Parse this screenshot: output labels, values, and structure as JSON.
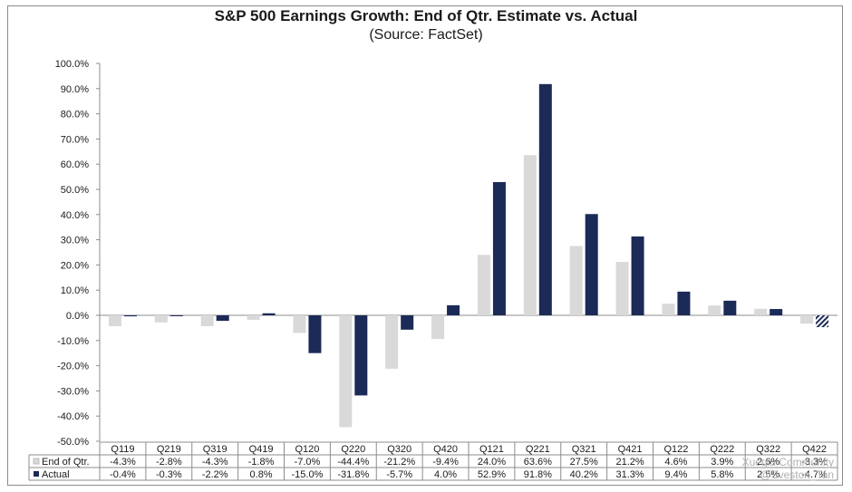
{
  "chart_data": {
    "type": "bar",
    "title": "S&P 500 Earnings Growth: End of Qtr. Estimate vs. Actual",
    "subtitle": "(Source: FactSet)",
    "categories": [
      "Q119",
      "Q219",
      "Q319",
      "Q419",
      "Q120",
      "Q220",
      "Q320",
      "Q420",
      "Q121",
      "Q221",
      "Q321",
      "Q421",
      "Q122",
      "Q222",
      "Q322",
      "Q422"
    ],
    "series": [
      {
        "name": "End of Qtr.",
        "color": "#d9d9d9",
        "values": [
          -4.3,
          -2.8,
          -4.3,
          -1.8,
          -7.0,
          -44.4,
          -21.2,
          -9.4,
          24.0,
          63.6,
          27.5,
          21.2,
          4.6,
          3.9,
          2.6,
          -3.3
        ],
        "labels": [
          "-4.3%",
          "-2.8%",
          "-4.3%",
          "-1.8%",
          "-7.0%",
          "-44.4%",
          "-21.2%",
          "-9.4%",
          "24.0%",
          "63.6%",
          "27.5%",
          "21.2%",
          "4.6%",
          "3.9%",
          "2.6%",
          "-3.3%"
        ]
      },
      {
        "name": "Actual",
        "color": "#1b2a57",
        "values": [
          -0.4,
          -0.3,
          -2.2,
          0.8,
          -15.0,
          -31.8,
          -5.7,
          4.0,
          52.9,
          91.8,
          40.2,
          31.3,
          9.4,
          5.8,
          2.5,
          -4.7
        ],
        "labels": [
          "-0.4%",
          "-0.3%",
          "-2.2%",
          "0.8%",
          "-15.0%",
          "-31.8%",
          "-5.7%",
          "4.0%",
          "52.9%",
          "91.8%",
          "40.2%",
          "31.3%",
          "9.4%",
          "5.8%",
          "2.5%",
          "-4.7%"
        ]
      }
    ],
    "ylim": [
      -50,
      100
    ],
    "yticks": [
      "100.0%",
      "90.0%",
      "80.0%",
      "70.0%",
      "60.0%",
      "50.0%",
      "40.0%",
      "30.0%",
      "20.0%",
      "10.0%",
      "0.0%",
      "-10.0%",
      "-20.0%",
      "-30.0%",
      "-40.0%",
      "-50.0%"
    ],
    "ytick_values": [
      100,
      90,
      80,
      70,
      60,
      50,
      40,
      30,
      20,
      10,
      0,
      -10,
      -20,
      -30,
      -40,
      -50
    ],
    "xlabel": "",
    "ylabel": "",
    "legend": "data-table"
  },
  "watermark": {
    "line1": "Xueqiu Community",
    "line2": "@Sveston_Tan"
  }
}
